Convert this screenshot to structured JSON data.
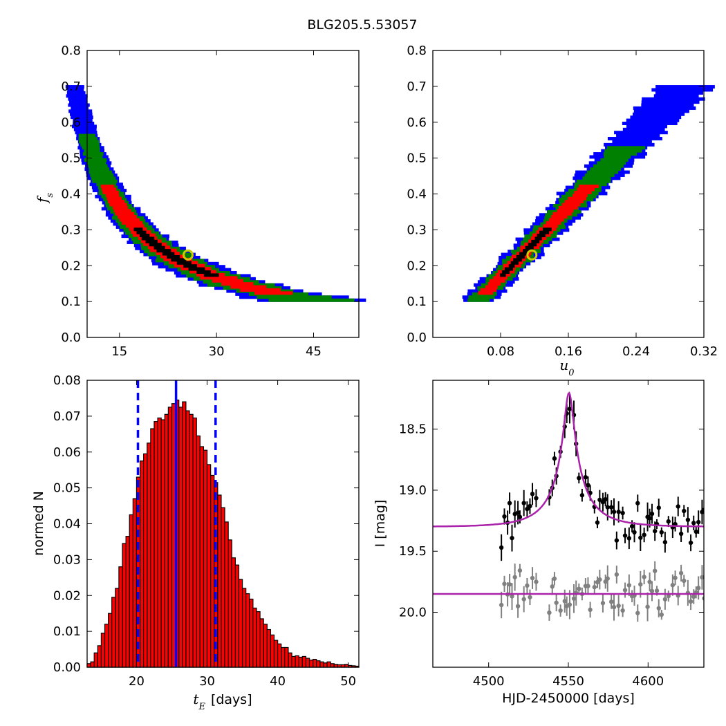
{
  "title": "BLG205.5.53057",
  "chart_data": [
    {
      "id": "fs_vs_tE",
      "type": "heatmap",
      "xlim": [
        10,
        52
      ],
      "ylim": [
        0.0,
        0.8
      ],
      "xticks": [
        "15",
        "30",
        "45"
      ],
      "xtick_values": [
        15,
        30,
        45
      ],
      "yticks": [
        "0.0",
        "0.1",
        "0.2",
        "0.3",
        "0.4",
        "0.5",
        "0.6",
        "0.7",
        "0.8"
      ],
      "xlabel": "",
      "ylabel_main": "f",
      "ylabel_sub": "s",
      "levels": [
        "black",
        "red",
        "green",
        "blue"
      ],
      "level_colors": [
        "#000000",
        "#ff0000",
        "#008000",
        "#0000ff"
      ],
      "best_fit": {
        "x": 25.6,
        "y": 0.23
      },
      "marker_color": "#cccc00"
    },
    {
      "id": "fs_vs_u0",
      "type": "heatmap",
      "xlim": [
        0.0,
        0.32
      ],
      "ylim": [
        0.0,
        0.8
      ],
      "xticks": [
        "0.08",
        "0.16",
        "0.24",
        "0.32"
      ],
      "xtick_values": [
        0.08,
        0.16,
        0.24,
        0.32
      ],
      "yticks": [
        "0.0",
        "0.1",
        "0.2",
        "0.3",
        "0.4",
        "0.5",
        "0.6",
        "0.7",
        "0.8"
      ],
      "xlabel_main": "u",
      "xlabel_sub": "0",
      "ylabel": "",
      "best_fit": {
        "x": 0.117,
        "y": 0.23
      },
      "marker_color": "#cccc00"
    },
    {
      "id": "tE_histogram",
      "type": "bar",
      "xlim": [
        13,
        51.5
      ],
      "ylim": [
        0.0,
        0.08
      ],
      "bin_width": 0.5,
      "bin_start": 13,
      "values": [
        0.001,
        0.0015,
        0.004,
        0.006,
        0.0095,
        0.012,
        0.015,
        0.0195,
        0.022,
        0.028,
        0.0345,
        0.0365,
        0.0425,
        0.047,
        0.053,
        0.0575,
        0.0595,
        0.0625,
        0.0665,
        0.0685,
        0.0695,
        0.069,
        0.0705,
        0.0725,
        0.0735,
        0.0745,
        0.0725,
        0.074,
        0.0715,
        0.0705,
        0.0695,
        0.0645,
        0.0615,
        0.0605,
        0.0565,
        0.0535,
        0.0515,
        0.048,
        0.0445,
        0.0405,
        0.0355,
        0.0305,
        0.0285,
        0.0245,
        0.022,
        0.0205,
        0.019,
        0.0165,
        0.0155,
        0.0135,
        0.012,
        0.0105,
        0.009,
        0.0075,
        0.0065,
        0.0055,
        0.0055,
        0.004,
        0.003,
        0.0032,
        0.0028,
        0.003,
        0.0025,
        0.002,
        0.0022,
        0.0018,
        0.0015,
        0.0012,
        0.0015,
        0.001,
        0.0008,
        0.0007,
        0.0007,
        0.0008,
        0.0005,
        0.0004,
        0.0003
      ],
      "bar_color": "#ff0000",
      "median": 25.6,
      "lower": 20.2,
      "upper": 31.2,
      "line_color": "#0000ff",
      "xticks": [
        "20",
        "30",
        "40",
        "50"
      ],
      "xtick_values": [
        20,
        30,
        40,
        50
      ],
      "yticks": [
        "0.00",
        "0.01",
        "0.02",
        "0.03",
        "0.04",
        "0.05",
        "0.06",
        "0.07",
        "0.08"
      ],
      "ylabel": "normed N",
      "xlabel_main": "t",
      "xlabel_sub": "E",
      "xlabel_suffix": "[days]"
    },
    {
      "id": "light_curve",
      "type": "scatter",
      "xlim": [
        4465,
        4635
      ],
      "ylim": [
        20.45,
        18.1
      ],
      "xticks": [
        "4500",
        "4550",
        "4600"
      ],
      "xtick_values": [
        4500,
        4550,
        4600
      ],
      "yticks": [
        "18.5",
        "19.0",
        "19.5",
        "20.0"
      ],
      "ytick_values": [
        18.5,
        19.0,
        19.5,
        20.0
      ],
      "xlabel": "HJD-2450000 [days]",
      "ylabel": "I [mag]",
      "model": {
        "t0": 4550.4,
        "u0": 0.117,
        "tE": 25.6,
        "fs": 0.23,
        "baseline": 19.3
      },
      "offset_baseline": 19.85,
      "model_color": "#aa22aa",
      "data_color": "#000000",
      "residual_color": "#808080"
    }
  ]
}
